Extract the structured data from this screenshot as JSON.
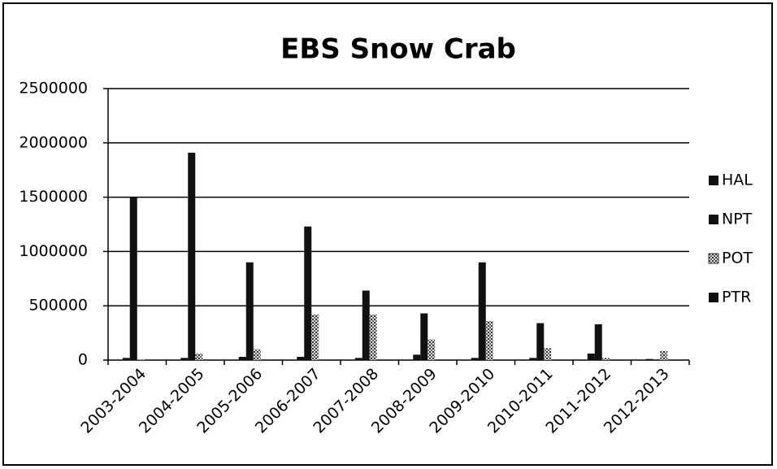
{
  "chart_data": {
    "type": "bar",
    "title": "EBS Snow Crab",
    "categories": [
      "2003-2004",
      "2004-2005",
      "2005-2006",
      "2006-2007",
      "2007-2008",
      "2008-2009",
      "2009-2010",
      "2010-2011",
      "2011-2012",
      "2012-2013"
    ],
    "series": [
      {
        "name": "HAL",
        "color": "#111111",
        "values": [
          20000,
          20000,
          30000,
          30000,
          20000,
          50000,
          20000,
          20000,
          60000,
          10000
        ]
      },
      {
        "name": "NPT",
        "color": "#111111",
        "values": [
          1500000,
          1910000,
          900000,
          1230000,
          640000,
          430000,
          900000,
          340000,
          330000,
          5000
        ]
      },
      {
        "name": "POT",
        "color": "#9a9a9a",
        "pattern": "dotted",
        "values": [
          5000,
          60000,
          100000,
          420000,
          420000,
          190000,
          360000,
          110000,
          20000,
          85000
        ]
      },
      {
        "name": "PTR",
        "color": "#111111",
        "values": [
          2000,
          0,
          0,
          0,
          0,
          0,
          0,
          0,
          0,
          0
        ]
      }
    ],
    "ylim": [
      0,
      2500000
    ],
    "yticks": [
      0,
      500000,
      1000000,
      1500000,
      2000000,
      2500000
    ],
    "grid": true,
    "legend": "right"
  }
}
